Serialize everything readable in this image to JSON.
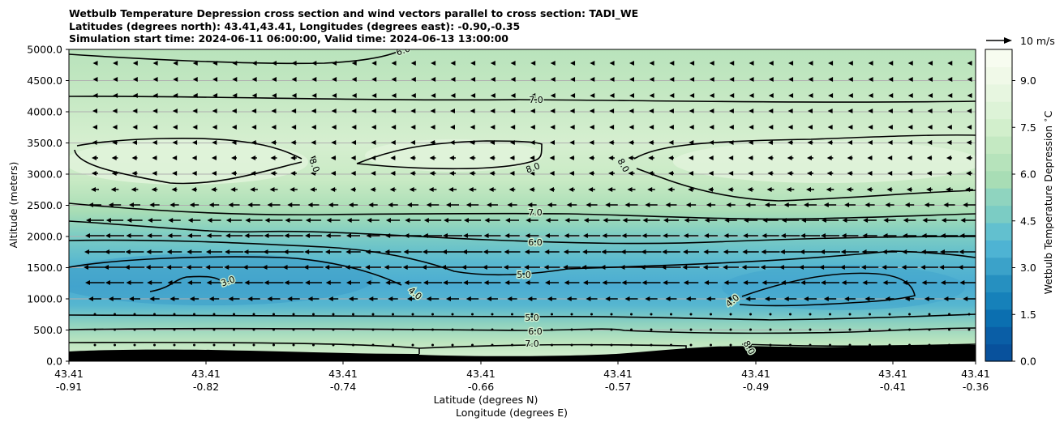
{
  "chart_data": {
    "type": "heatmap",
    "title_lines": [
      "Wetbulb Temperature Depression cross section and wind vectors parallel to cross section: TADI_WE",
      "Latitudes (degrees north): 43.41,43.41, Longitudes (degrees east): -0.90,-0.35",
      "Simulation start time: 2024-06-11 06:00:00, Valid time: 2024-06-13 13:00:00"
    ],
    "ylabel": "Altitude (meters)",
    "xlabel_lines": [
      "Latitude (degrees N)",
      "Longitude (degrees E)"
    ],
    "ylim": [
      0,
      5000
    ],
    "y_ticks": [
      "0.0",
      "500.0",
      "1000.0",
      "1500.0",
      "2000.0",
      "2500.0",
      "3000.0",
      "3500.0",
      "4000.0",
      "4500.0",
      "5000.0"
    ],
    "x_ticks": [
      {
        "lat": "43.41",
        "lon": "-0.91"
      },
      {
        "lat": "43.41",
        "lon": "-0.82"
      },
      {
        "lat": "43.41",
        "lon": "-0.74"
      },
      {
        "lat": "43.41",
        "lon": "-0.66"
      },
      {
        "lat": "43.41",
        "lon": "-0.57"
      },
      {
        "lat": "43.41",
        "lon": "-0.49"
      },
      {
        "lat": "43.41",
        "lon": "-0.41"
      },
      {
        "lat": "43.41",
        "lon": "-0.36"
      }
    ],
    "colorbar": {
      "label": "Wetbulb Temperature Depression $^\\circ$C",
      "ticks": [
        "0.0",
        "1.5",
        "3.0",
        "4.5",
        "6.0",
        "7.5",
        "9.0"
      ],
      "range": [
        0,
        10
      ],
      "colormap": "GnBu_r"
    },
    "quiver_key": {
      "label": "10 m/s"
    },
    "contour_labels": [
      "3.0",
      "4.0",
      "4.0",
      "5.0",
      "5.0",
      "6.0",
      "6.0",
      "6.0",
      "7.0",
      "7.0",
      "7.0",
      "8.0",
      "8.0",
      "8.0",
      "8.0"
    ],
    "grid": "horizontal"
  }
}
